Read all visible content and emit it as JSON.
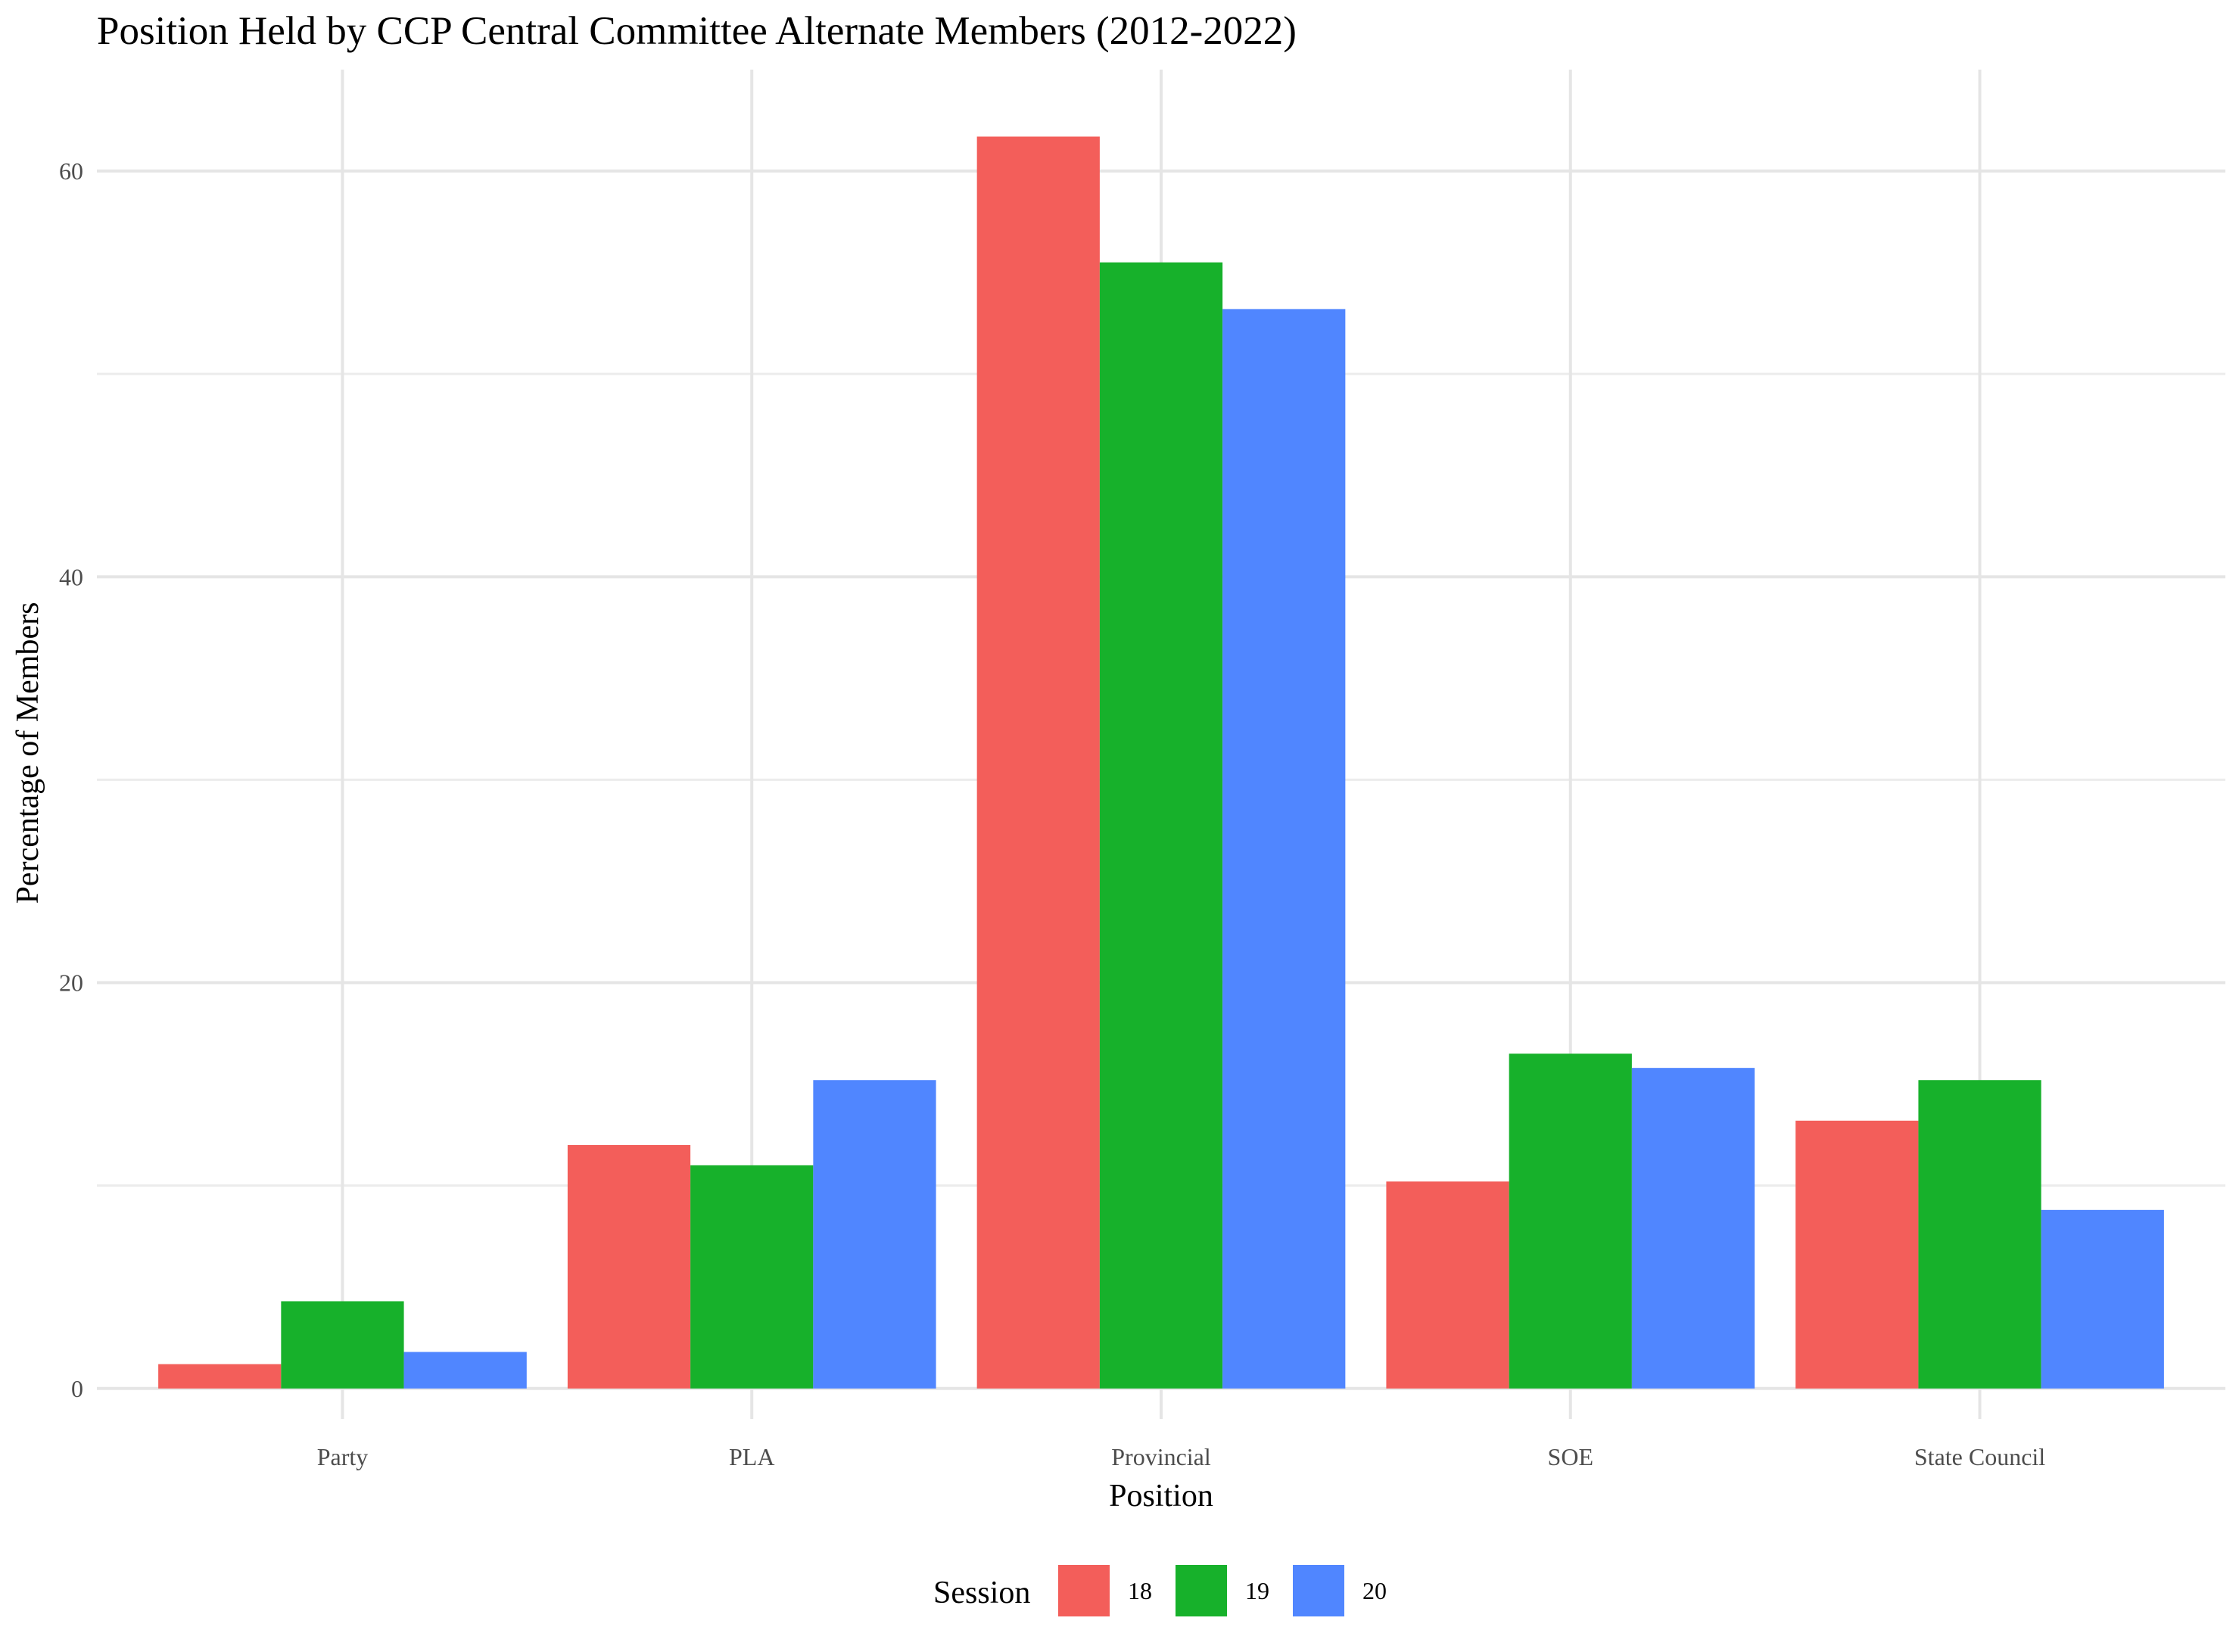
{
  "chart_data": {
    "type": "bar",
    "title": "Position Held by CCP Central Committee Alternate Members (2012-2022)",
    "xlabel": "Position",
    "ylabel": "Percentage of Members",
    "categories": [
      "Party",
      "PLA",
      "Provincial",
      "SOE",
      "State Council"
    ],
    "ylim": [
      -1.5,
      65
    ],
    "yticks": [
      0,
      20,
      40,
      60
    ],
    "grid": true,
    "legend": {
      "title": "Session",
      "placement": "bottom"
    },
    "series": [
      {
        "name": "18",
        "color": "#F35E5A",
        "values": [
          1.2,
          12.0,
          61.7,
          10.2,
          13.2
        ]
      },
      {
        "name": "19",
        "color": "#17B12B",
        "values": [
          4.3,
          11.0,
          55.5,
          16.5,
          15.2
        ]
      },
      {
        "name": "20",
        "color": "#5086FF",
        "values": [
          1.8,
          15.2,
          53.2,
          15.8,
          8.8
        ]
      }
    ]
  }
}
